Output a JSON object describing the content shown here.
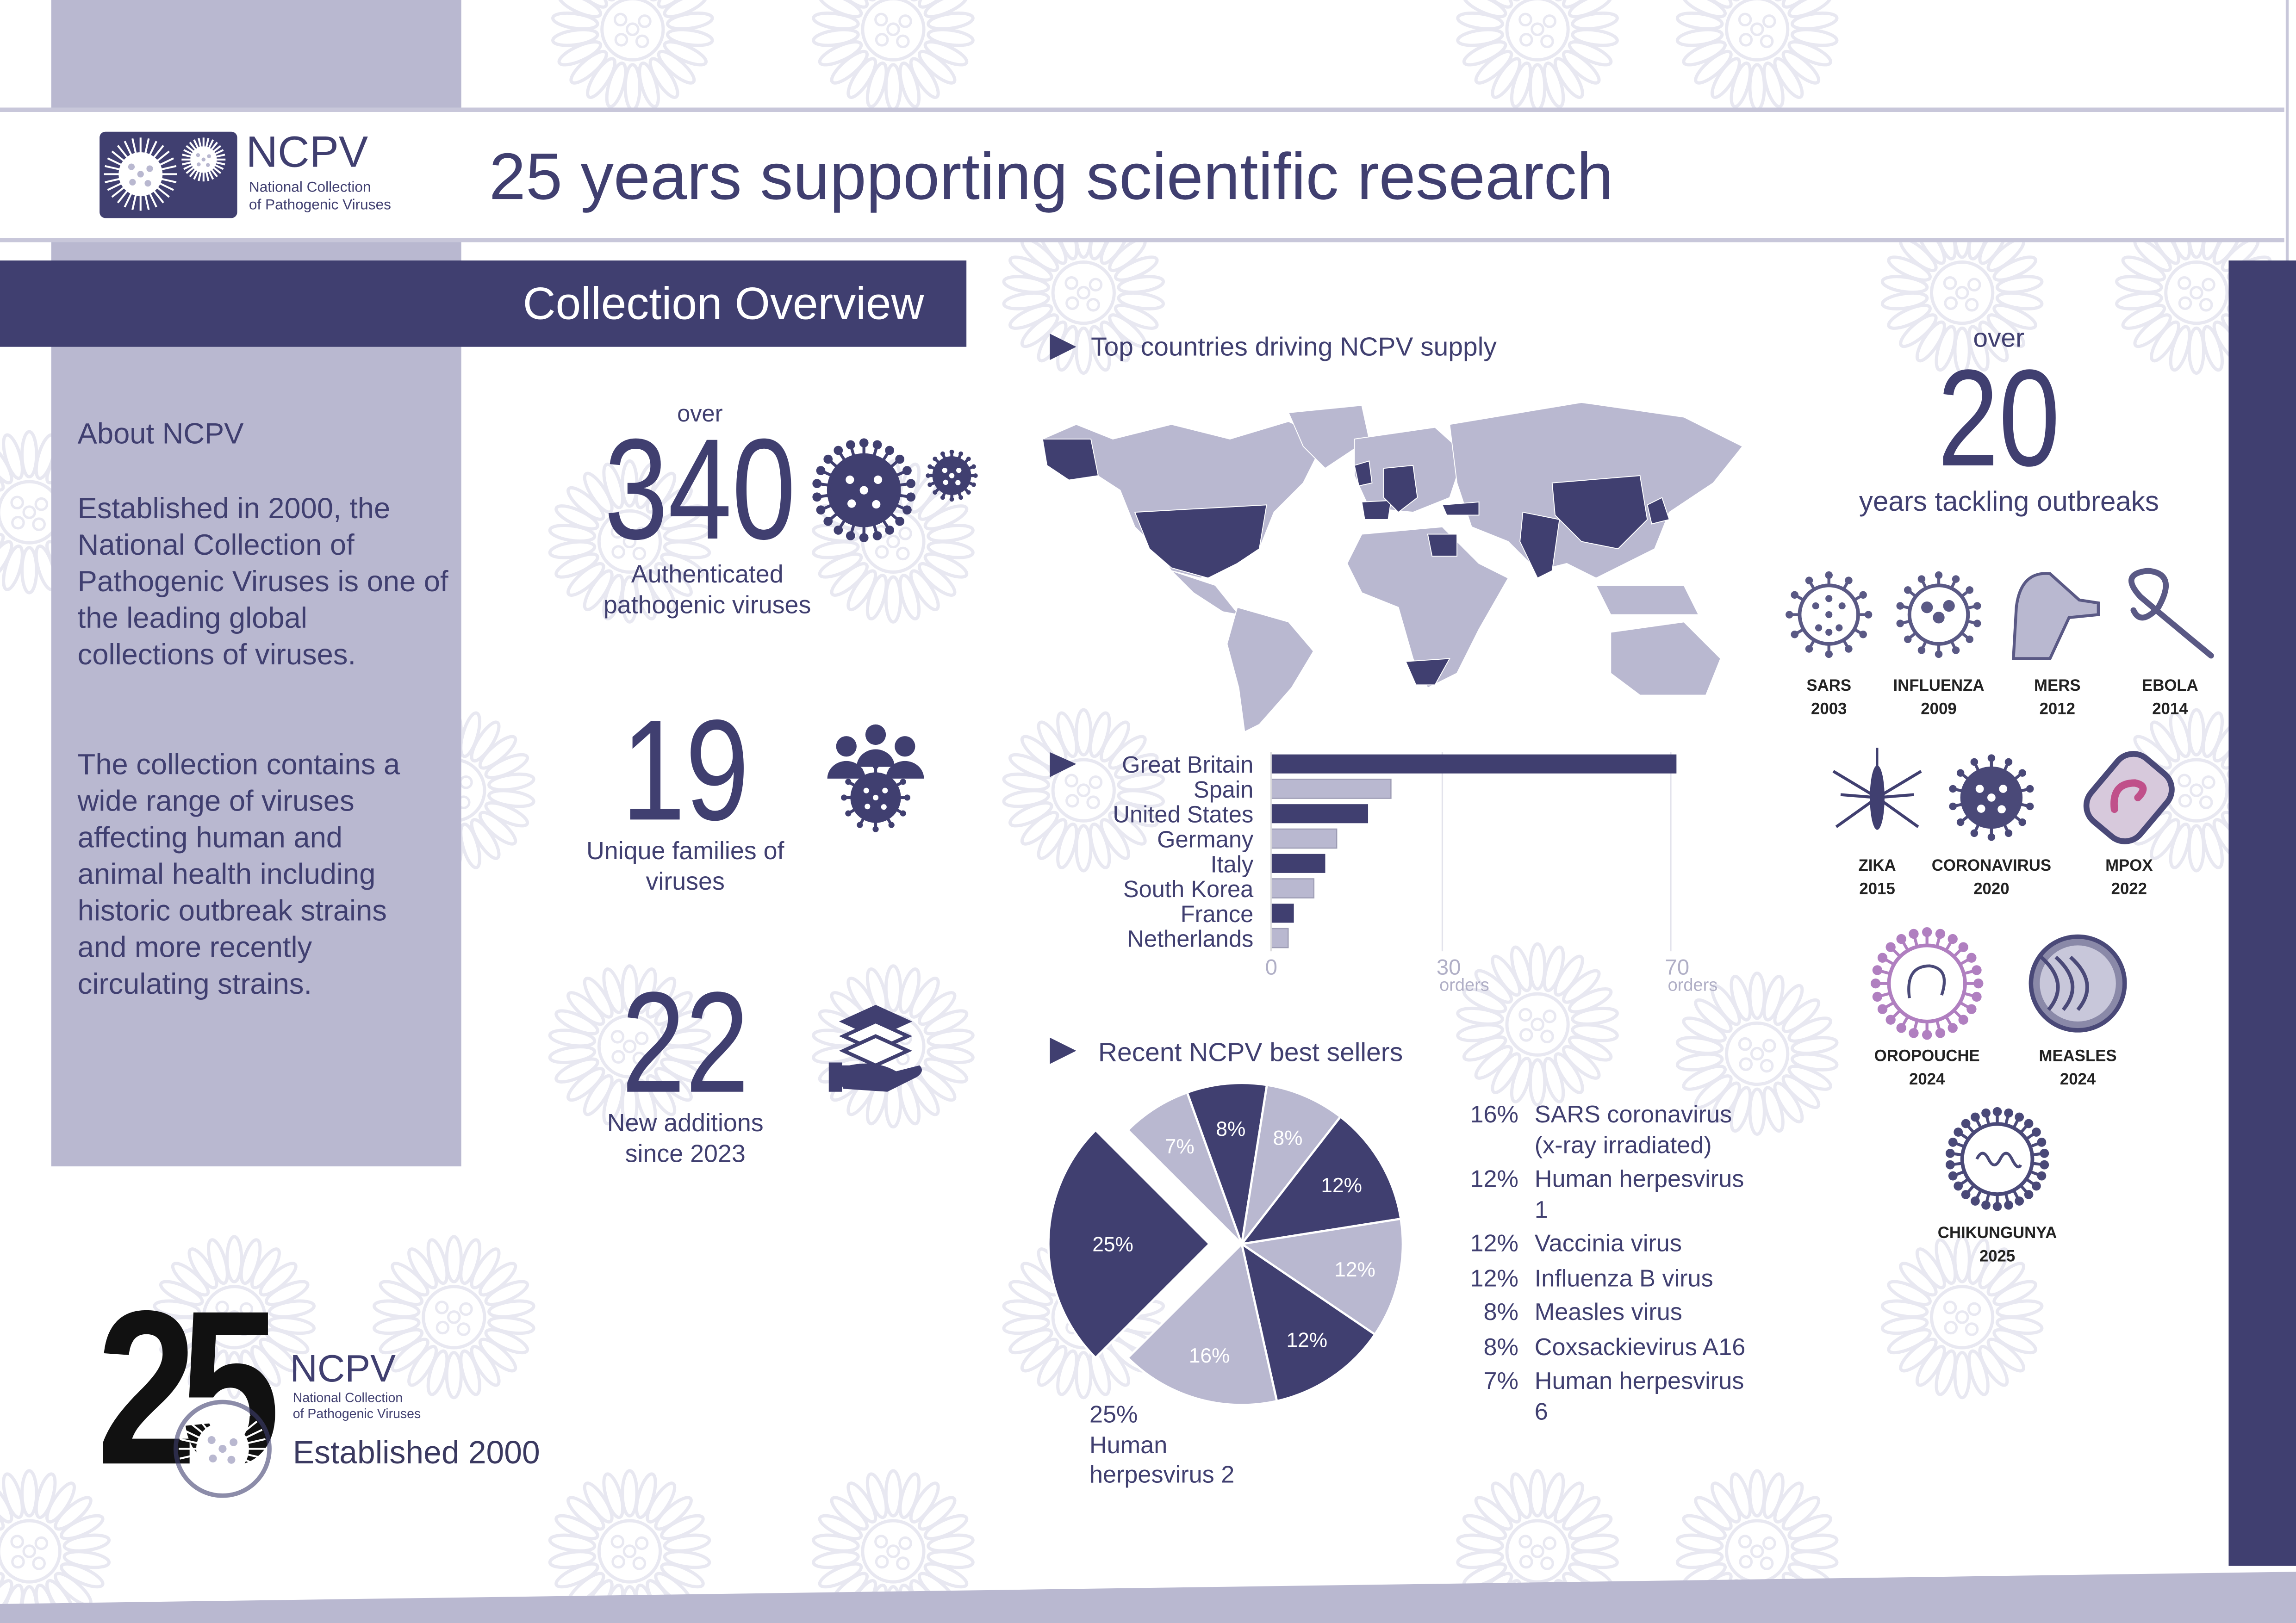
{
  "header": {
    "logo": {
      "acronym": "NCPV",
      "line1": "National Collection",
      "line2": "of Pathogenic Viruses"
    },
    "title": "25 years supporting scientific research"
  },
  "section_title": "Collection Overview",
  "about": {
    "heading": "About NCPV",
    "paragraphs": [
      "Established in 2000, the National Collection of Pathogenic Viruses is one of the leading global collections of viruses.",
      "The collection contains a wide range of viruses affecting human and animal health including historic outbreak strains and more recently circulating strains."
    ]
  },
  "stats": [
    {
      "prefix": "over",
      "value": 340,
      "label": "Authenticated pathogenic viruses"
    },
    {
      "value": 19,
      "label": "Unique families of viruses"
    },
    {
      "value": 22,
      "label": "New additions since 2023"
    }
  ],
  "map": {
    "title": "Top countries driving NCPV supply"
  },
  "chart_data": [
    {
      "type": "bar",
      "orientation": "horizontal",
      "categories": [
        "Great Britain",
        "Spain",
        "United States",
        "Germany",
        "Italy",
        "South Korea",
        "France",
        "Netherlands"
      ],
      "values": [
        71,
        21,
        17,
        11.5,
        9.5,
        7.5,
        4,
        3
      ],
      "colors": [
        "#403f70",
        "#b9b8d0",
        "#403f70",
        "#b9b8d0",
        "#403f70",
        "#b9b8d0",
        "#403f70",
        "#b9b8d0"
      ],
      "xlim": [
        0,
        75
      ],
      "xticks": [
        0,
        30,
        70
      ],
      "x_unit": "orders",
      "grid": true
    },
    {
      "type": "pie",
      "title": "Recent NCPV best sellers",
      "categories": [
        "Human herpesvirus 2",
        "Human herpesvirus 6",
        "Coxsackievirus A16",
        "Measles virus",
        "Influenza B virus",
        "Vaccinia virus",
        "Human herpesvirus 1",
        "SARS coronavirus (x-ray irradiated)"
      ],
      "values": [
        25,
        7,
        8,
        8,
        12,
        12,
        12,
        16
      ],
      "value_labels": [
        "25%",
        "7%",
        "8%",
        "8%",
        "12%",
        "12%",
        "12%",
        "16%"
      ],
      "colors": [
        "#403f70",
        "#b9b8d0",
        "#403f70",
        "#b9b8d0",
        "#403f70",
        "#b9b8d0",
        "#403f70",
        "#b9b8d0"
      ]
    }
  ],
  "outbreaks": {
    "prefix": "over",
    "years": 20,
    "label": "years tackling outbreaks",
    "items": [
      {
        "name": "SARS",
        "year": 2003
      },
      {
        "name": "INFLUENZA",
        "year": 2009
      },
      {
        "name": "MERS",
        "year": 2012
      },
      {
        "name": "EBOLA",
        "year": 2014
      },
      {
        "name": "ZIKA",
        "year": 2015
      },
      {
        "name": "CORONAVIRUS",
        "year": 2020
      },
      {
        "name": "MPOX",
        "year": 2022
      },
      {
        "name": "OROPOUCHE",
        "year": 2024
      },
      {
        "name": "MEASLES",
        "year": 2024
      },
      {
        "name": "CHIKUNGUNYA",
        "year": 2025
      }
    ]
  },
  "footer_logo": {
    "number": 25,
    "acronym": "NCPV",
    "line1": "National Collection",
    "line2": "of Pathogenic Viruses",
    "established": "Established 2000"
  }
}
